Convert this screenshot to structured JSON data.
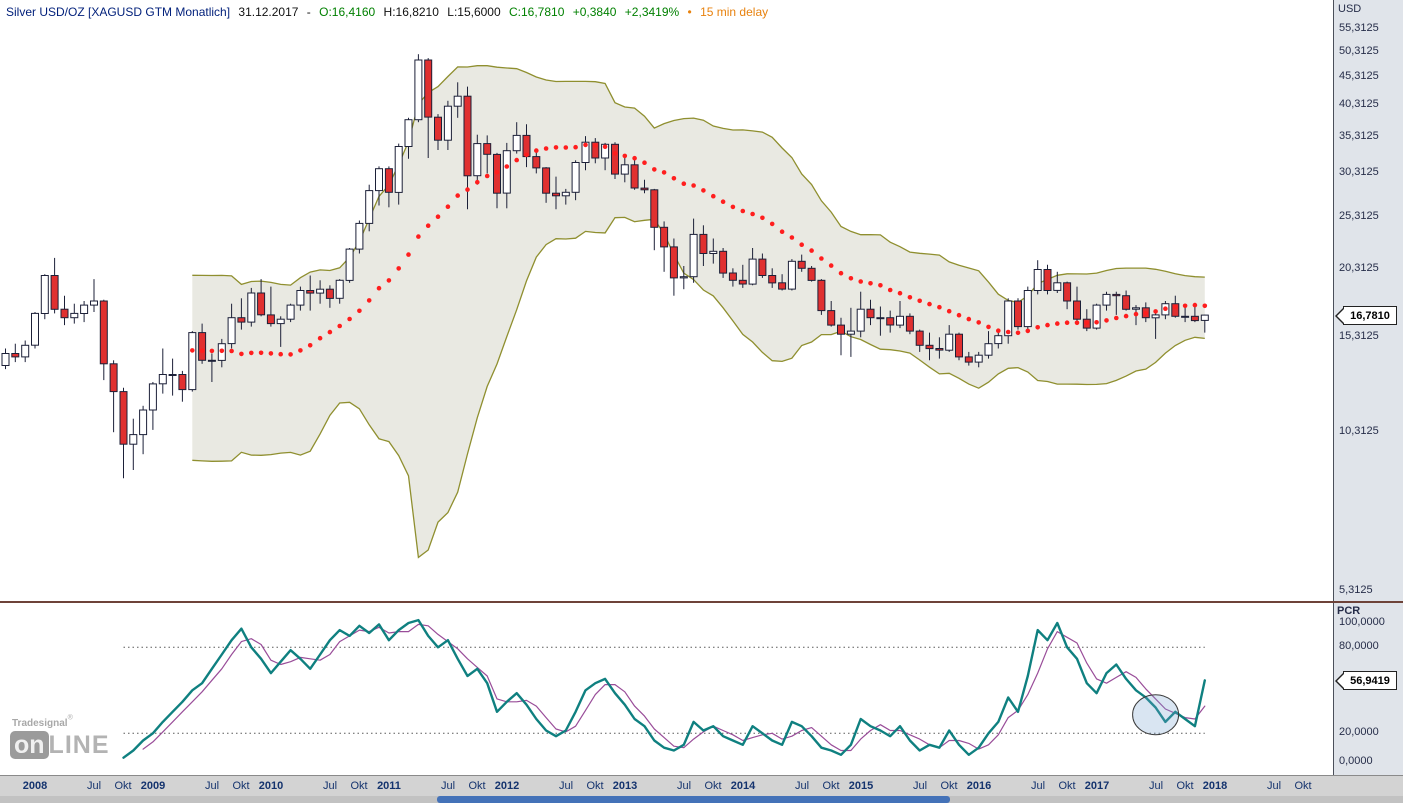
{
  "title_bar": {
    "symbol": "Silver USD/OZ [XAGUSD GTM Monatlich]",
    "date": "31.12.2017",
    "sep": "-",
    "open": "O:16,4160",
    "high": "H:16,8210",
    "low": "L:15,6000",
    "close": "C:16,7810",
    "change": "+0,3840",
    "change_pct": "+2,3419%",
    "delay_dot": "•",
    "delay": "15 min delay"
  },
  "price_axis": {
    "currency_label": "USD",
    "labels": [
      "55,3125",
      "50,3125",
      "45,3125",
      "40,3125",
      "35,3125",
      "30,3125",
      "25,3125",
      "20,3125",
      "15,3125",
      "10,3125",
      "5,3125"
    ],
    "price_tag": "16,7810"
  },
  "indicator_axis": {
    "name": "PCR",
    "labels": [
      "100,0000",
      "80,0000",
      "20,0000",
      "0,0000"
    ],
    "value_tag": "56,9419"
  },
  "xaxis": {
    "ticks": [
      {
        "label": "2008",
        "m": 3
      },
      {
        "label": "Jul",
        "m": 9
      },
      {
        "label": "Okt",
        "m": 12
      },
      {
        "label": "2009",
        "m": 15
      },
      {
        "label": "Jul",
        "m": 21
      },
      {
        "label": "Okt",
        "m": 24
      },
      {
        "label": "2010",
        "m": 27
      },
      {
        "label": "Jul",
        "m": 33
      },
      {
        "label": "Okt",
        "m": 36
      },
      {
        "label": "2011",
        "m": 39
      },
      {
        "label": "Jul",
        "m": 45
      },
      {
        "label": "Okt",
        "m": 48
      },
      {
        "label": "2012",
        "m": 51
      },
      {
        "label": "Jul",
        "m": 57
      },
      {
        "label": "Okt",
        "m": 60
      },
      {
        "label": "2013",
        "m": 63
      },
      {
        "label": "Jul",
        "m": 69
      },
      {
        "label": "Okt",
        "m": 72
      },
      {
        "label": "2014",
        "m": 75
      },
      {
        "label": "Jul",
        "m": 81
      },
      {
        "label": "Okt",
        "m": 84
      },
      {
        "label": "2015",
        "m": 87
      },
      {
        "label": "Jul",
        "m": 93
      },
      {
        "label": "Okt",
        "m": 96
      },
      {
        "label": "2016",
        "m": 99
      },
      {
        "label": "Jul",
        "m": 105
      },
      {
        "label": "Okt",
        "m": 108
      },
      {
        "label": "2017",
        "m": 111
      },
      {
        "label": "Jul",
        "m": 117
      },
      {
        "label": "Okt",
        "m": 120
      },
      {
        "label": "2018",
        "m": 123
      },
      {
        "label": "Jul",
        "m": 129
      },
      {
        "label": "Okt",
        "m": 132
      }
    ]
  },
  "logo": {
    "brand_top": "Tradesignal",
    "reg": "®",
    "word_on": "on",
    "word_line": "LINE"
  },
  "ui_colors": {
    "symbol_text": "#001f7a",
    "positive": "#008000",
    "delay": "#e8820e",
    "axis_text": "#262d49",
    "tick_text": "#14336e",
    "divider": "#6e4339",
    "gutter_bg": "#e0e4ea",
    "strip_bg": "#d3d3d3",
    "scroll_thumb": "#4472b8"
  },
  "chart_data": {
    "type": "candlestick",
    "title": "Silver USD/OZ [XAGUSD GTM Monatlich]",
    "timeframe": "Monthly",
    "start": "2007-10",
    "end": "2017-12",
    "y_axis": {
      "scale": "log",
      "tick_values": [
        55.3125,
        50.3125,
        45.3125,
        40.3125,
        35.3125,
        30.3125,
        25.3125,
        20.3125,
        15.3125,
        10.3125,
        5.3125
      ]
    },
    "last_bar": {
      "date": "31.12.2017",
      "open": 16.416,
      "high": 16.821,
      "low": 15.6,
      "close": 16.781,
      "change": 0.384,
      "change_pct": 2.3419
    },
    "ohlc": [
      [
        13.6,
        14.6,
        13.4,
        14.3
      ],
      [
        14.3,
        14.9,
        13.8,
        14.1
      ],
      [
        14.1,
        15.1,
        13.8,
        14.8
      ],
      [
        14.8,
        17.0,
        14.6,
        16.9
      ],
      [
        16.9,
        19.9,
        16.5,
        19.8
      ],
      [
        19.8,
        21.3,
        16.9,
        17.2
      ],
      [
        17.2,
        18.2,
        16.1,
        16.6
      ],
      [
        16.6,
        17.6,
        16.2,
        16.9
      ],
      [
        16.9,
        17.8,
        16.3,
        17.5
      ],
      [
        17.5,
        19.5,
        17.0,
        17.8
      ],
      [
        17.8,
        17.9,
        12.8,
        13.7
      ],
      [
        13.7,
        13.9,
        10.3,
        12.2
      ],
      [
        12.2,
        12.4,
        8.5,
        9.8
      ],
      [
        9.8,
        10.9,
        8.8,
        10.2
      ],
      [
        10.2,
        11.5,
        9.4,
        11.3
      ],
      [
        11.3,
        12.7,
        10.4,
        12.6
      ],
      [
        12.6,
        14.6,
        12.1,
        13.1
      ],
      [
        13.1,
        14.0,
        12.0,
        13.1
      ],
      [
        13.1,
        13.3,
        11.7,
        12.3
      ],
      [
        12.3,
        15.7,
        12.2,
        15.6
      ],
      [
        15.6,
        16.2,
        13.7,
        13.9
      ],
      [
        13.9,
        14.3,
        12.7,
        13.9
      ],
      [
        13.9,
        15.2,
        13.5,
        14.9
      ],
      [
        14.9,
        17.6,
        14.6,
        16.6
      ],
      [
        16.6,
        18.0,
        15.8,
        16.3
      ],
      [
        16.3,
        18.8,
        16.0,
        18.4
      ],
      [
        18.4,
        19.5,
        16.7,
        16.8
      ],
      [
        16.8,
        18.9,
        16.0,
        16.2
      ],
      [
        16.2,
        16.7,
        14.7,
        16.5
      ],
      [
        16.5,
        17.6,
        16.3,
        17.5
      ],
      [
        17.5,
        18.9,
        17.1,
        18.6
      ],
      [
        18.6,
        19.8,
        17.1,
        18.4
      ],
      [
        18.4,
        19.4,
        17.6,
        18.7
      ],
      [
        18.7,
        19.0,
        17.3,
        18.0
      ],
      [
        18.0,
        19.5,
        17.6,
        19.4
      ],
      [
        19.4,
        22.2,
        19.2,
        22.1
      ],
      [
        22.1,
        24.9,
        21.7,
        24.6
      ],
      [
        24.6,
        28.9,
        23.8,
        28.2
      ],
      [
        28.2,
        31.2,
        26.5,
        30.9
      ],
      [
        30.9,
        31.2,
        26.3,
        28.0
      ],
      [
        28.0,
        34.3,
        26.6,
        33.9
      ],
      [
        33.9,
        38.2,
        32.2,
        37.9
      ],
      [
        37.9,
        49.8,
        37.5,
        48.6
      ],
      [
        48.6,
        49.0,
        32.3,
        38.3
      ],
      [
        38.3,
        38.8,
        33.4,
        34.8
      ],
      [
        34.8,
        41.0,
        33.4,
        40.1
      ],
      [
        40.1,
        44.3,
        38.2,
        41.8
      ],
      [
        41.8,
        43.5,
        26.1,
        30.0
      ],
      [
        30.0,
        35.6,
        28.9,
        34.3
      ],
      [
        34.3,
        35.5,
        30.3,
        32.8
      ],
      [
        32.8,
        33.0,
        26.2,
        27.9
      ],
      [
        27.9,
        34.4,
        26.2,
        33.3
      ],
      [
        33.3,
        37.5,
        32.9,
        35.5
      ],
      [
        35.5,
        37.2,
        31.1,
        32.5
      ],
      [
        32.5,
        33.3,
        30.3,
        31.0
      ],
      [
        31.0,
        31.1,
        26.8,
        27.9
      ],
      [
        27.9,
        29.9,
        26.1,
        27.6
      ],
      [
        27.6,
        28.4,
        26.6,
        28.0
      ],
      [
        28.0,
        32.0,
        27.1,
        31.7
      ],
      [
        31.7,
        35.4,
        30.7,
        34.5
      ],
      [
        34.5,
        35.1,
        31.6,
        32.3
      ],
      [
        32.3,
        34.4,
        30.7,
        34.2
      ],
      [
        34.2,
        34.5,
        29.6,
        30.2
      ],
      [
        30.2,
        32.5,
        29.2,
        31.4
      ],
      [
        31.4,
        32.1,
        28.3,
        28.5
      ],
      [
        28.5,
        29.5,
        27.9,
        28.3
      ],
      [
        28.3,
        28.4,
        22.0,
        24.2
      ],
      [
        24.2,
        24.8,
        20.1,
        22.3
      ],
      [
        22.3,
        23.1,
        18.2,
        19.6
      ],
      [
        19.6,
        20.6,
        18.7,
        19.7
      ],
      [
        19.7,
        25.1,
        19.2,
        23.5
      ],
      [
        23.5,
        24.4,
        20.6,
        21.7
      ],
      [
        21.7,
        23.1,
        20.8,
        21.9
      ],
      [
        21.9,
        22.2,
        19.6,
        20.0
      ],
      [
        20.0,
        20.4,
        18.9,
        19.4
      ],
      [
        19.4,
        20.7,
        18.8,
        19.1
      ],
      [
        19.1,
        22.2,
        19.0,
        21.2
      ],
      [
        21.2,
        21.7,
        19.6,
        19.8
      ],
      [
        19.8,
        20.4,
        18.8,
        19.2
      ],
      [
        19.2,
        19.9,
        18.6,
        18.7
      ],
      [
        18.7,
        21.2,
        18.6,
        21.0
      ],
      [
        21.0,
        21.6,
        20.1,
        20.4
      ],
      [
        20.4,
        20.6,
        19.3,
        19.4
      ],
      [
        19.4,
        19.5,
        16.8,
        17.1
      ],
      [
        17.1,
        17.8,
        16.0,
        16.1
      ],
      [
        16.1,
        16.6,
        14.2,
        15.5
      ],
      [
        15.5,
        17.3,
        14.1,
        15.7
      ],
      [
        15.7,
        18.5,
        15.3,
        17.2
      ],
      [
        17.2,
        17.9,
        16.1,
        16.6
      ],
      [
        16.6,
        17.4,
        15.4,
        16.6
      ],
      [
        16.6,
        17.1,
        15.6,
        16.1
      ],
      [
        16.1,
        17.8,
        15.9,
        16.7
      ],
      [
        16.7,
        16.9,
        15.5,
        15.7
      ],
      [
        15.7,
        15.8,
        14.4,
        14.8
      ],
      [
        14.8,
        15.6,
        13.9,
        14.6
      ],
      [
        14.6,
        15.3,
        14.0,
        14.5
      ],
      [
        14.5,
        16.1,
        14.4,
        15.5
      ],
      [
        15.5,
        15.6,
        13.9,
        14.1
      ],
      [
        14.1,
        14.4,
        13.6,
        13.8
      ],
      [
        13.8,
        14.4,
        13.5,
        14.2
      ],
      [
        14.2,
        15.7,
        14.0,
        14.9
      ],
      [
        14.9,
        15.7,
        14.6,
        15.4
      ],
      [
        15.4,
        18.0,
        14.9,
        17.8
      ],
      [
        17.8,
        18.0,
        15.8,
        16.0
      ],
      [
        16.0,
        18.9,
        15.8,
        18.6
      ],
      [
        18.6,
        21.1,
        18.3,
        20.3
      ],
      [
        20.3,
        20.7,
        18.3,
        18.6
      ],
      [
        18.6,
        20.1,
        18.4,
        19.2
      ],
      [
        19.2,
        19.3,
        17.2,
        17.8
      ],
      [
        17.8,
        18.9,
        16.2,
        16.5
      ],
      [
        16.5,
        17.2,
        15.7,
        15.9
      ],
      [
        15.9,
        17.6,
        15.8,
        17.5
      ],
      [
        17.5,
        18.5,
        17.1,
        18.3
      ],
      [
        18.3,
        18.5,
        16.8,
        18.2
      ],
      [
        18.2,
        18.6,
        17.1,
        17.2
      ],
      [
        17.2,
        17.5,
        16.1,
        17.3
      ],
      [
        17.3,
        17.7,
        16.3,
        16.6
      ],
      [
        16.6,
        16.9,
        15.2,
        16.8
      ],
      [
        16.8,
        17.8,
        16.5,
        17.6
      ],
      [
        17.6,
        18.2,
        16.6,
        16.7
      ],
      [
        16.7,
        17.5,
        16.3,
        16.7
      ],
      [
        16.7,
        17.4,
        16.3,
        16.4
      ],
      [
        16.416,
        16.821,
        15.6,
        16.781
      ]
    ],
    "overlays": {
      "sma_period": 20,
      "band_mult": 2
    },
    "colors": {
      "up": "#ffffff",
      "down": "#e03030",
      "border": "#1c2038",
      "wick": "#1c2038",
      "band_fill": "#e9e9e2",
      "band_edge": "#8f8f2f",
      "sma": "#ff1e1e",
      "pcr": "#0f8080",
      "signal": "#994d99"
    },
    "indicator": {
      "name": "PCR",
      "range": [
        0,
        100
      ],
      "gridlines": [
        80,
        20
      ],
      "last_value": 56.9419,
      "highlight": {
        "month_index": 117,
        "value": 33
      },
      "series": [
        {
          "name": "PCR",
          "values": [
            null,
            null,
            null,
            null,
            null,
            null,
            null,
            null,
            null,
            null,
            null,
            null,
            3,
            8,
            15,
            20,
            28,
            35,
            42,
            50,
            55,
            65,
            75,
            85,
            93,
            80,
            72,
            62,
            70,
            78,
            72,
            65,
            75,
            85,
            92,
            88,
            95,
            90,
            96,
            85,
            92,
            97,
            99,
            88,
            80,
            85,
            72,
            60,
            65,
            55,
            35,
            42,
            48,
            40,
            30,
            22,
            18,
            22,
            35,
            50,
            55,
            58,
            48,
            40,
            30,
            25,
            15,
            10,
            8,
            12,
            28,
            22,
            25,
            18,
            15,
            12,
            25,
            20,
            15,
            12,
            28,
            25,
            18,
            10,
            8,
            5,
            12,
            30,
            25,
            22,
            18,
            25,
            15,
            8,
            12,
            10,
            22,
            12,
            5,
            10,
            20,
            28,
            45,
            35,
            60,
            92,
            85,
            97,
            80,
            72,
            55,
            48,
            62,
            68,
            58,
            50,
            45,
            38,
            28,
            35,
            30,
            25,
            56.94
          ]
        },
        {
          "name": "PCR Signal",
          "values": [
            null,
            null,
            null,
            null,
            null,
            null,
            null,
            null,
            null,
            null,
            null,
            null,
            null,
            null,
            9,
            14,
            21,
            28,
            35,
            42,
            49,
            57,
            65,
            75,
            84,
            86,
            82,
            71,
            68,
            70,
            73,
            72,
            71,
            75,
            84,
            88,
            92,
            91,
            94,
            90,
            91,
            91,
            96,
            95,
            89,
            84,
            79,
            72,
            66,
            60,
            44,
            42,
            42,
            43,
            39,
            31,
            23,
            21,
            25,
            36,
            47,
            54,
            54,
            49,
            39,
            32,
            23,
            17,
            11,
            10,
            16,
            21,
            25,
            22,
            19,
            15,
            17,
            19,
            20,
            16,
            18,
            22,
            24,
            18,
            12,
            8,
            8,
            16,
            22,
            26,
            22,
            22,
            19,
            16,
            12,
            10,
            15,
            15,
            13,
            9,
            12,
            19,
            31,
            36,
            47,
            62,
            79,
            91,
            87,
            83,
            69,
            58,
            55,
            59,
            63,
            59,
            51,
            44,
            37,
            34,
            31,
            30,
            39
          ]
        }
      ]
    }
  }
}
